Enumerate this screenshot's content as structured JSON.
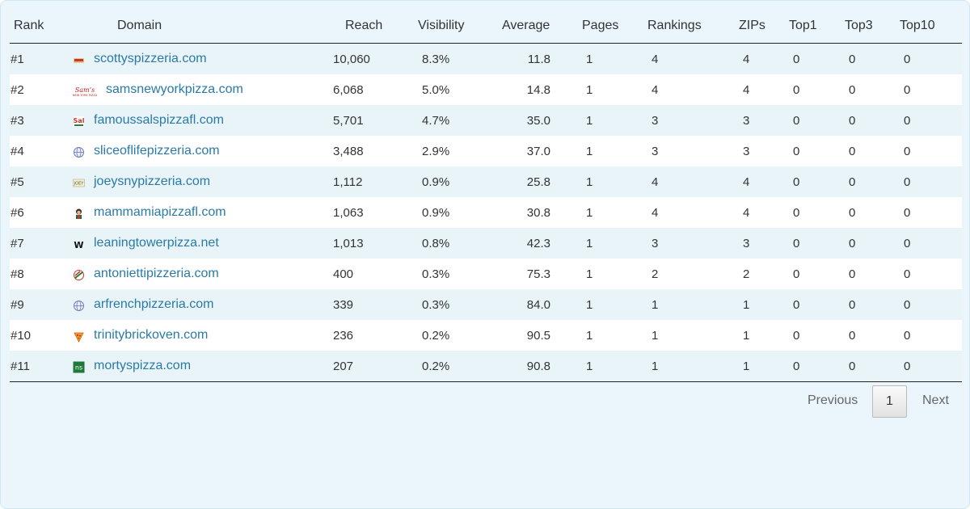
{
  "columns": {
    "rank": "Rank",
    "domain": "Domain",
    "reach": "Reach",
    "visibility": "Visibility",
    "average": "Average",
    "pages": "Pages",
    "rankings": "Rankings",
    "zips": "ZIPs",
    "top1": "Top1",
    "top3": "Top3",
    "top10": "Top10"
  },
  "rows": [
    {
      "rank": "#1",
      "domain": "scottyspizzeria.com",
      "favicon": "pizza-logo-icon",
      "reach": "10,060",
      "visibility": "8.3%",
      "average": "11.8",
      "pages": "1",
      "rankings": "4",
      "zips": "4",
      "top1": "0",
      "top3": "0",
      "top10": "0"
    },
    {
      "rank": "#2",
      "domain": "samsnewyorkpizza.com",
      "favicon": "sams-logo-icon",
      "reach": "6,068",
      "visibility": "5.0%",
      "average": "14.8",
      "pages": "1",
      "rankings": "4",
      "zips": "4",
      "top1": "0",
      "top3": "0",
      "top10": "0"
    },
    {
      "rank": "#3",
      "domain": "famoussalspizzafl.com",
      "favicon": "sals-logo-icon",
      "reach": "5,701",
      "visibility": "4.7%",
      "average": "35.0",
      "pages": "1",
      "rankings": "3",
      "zips": "3",
      "top1": "0",
      "top3": "0",
      "top10": "0"
    },
    {
      "rank": "#4",
      "domain": "sliceoflifepizzeria.com",
      "favicon": "globe-icon",
      "reach": "3,488",
      "visibility": "2.9%",
      "average": "37.0",
      "pages": "1",
      "rankings": "3",
      "zips": "3",
      "top1": "0",
      "top3": "0",
      "top10": "0"
    },
    {
      "rank": "#5",
      "domain": "joeysnypizzeria.com",
      "favicon": "joeys-logo-icon",
      "reach": "1,112",
      "visibility": "0.9%",
      "average": "25.8",
      "pages": "1",
      "rankings": "4",
      "zips": "4",
      "top1": "0",
      "top3": "0",
      "top10": "0"
    },
    {
      "rank": "#6",
      "domain": "mammamiapizzafl.com",
      "favicon": "chef-logo-icon",
      "reach": "1,063",
      "visibility": "0.9%",
      "average": "30.8",
      "pages": "1",
      "rankings": "4",
      "zips": "4",
      "top1": "0",
      "top3": "0",
      "top10": "0"
    },
    {
      "rank": "#7",
      "domain": "leaningtowerpizza.net",
      "favicon": "wix-icon",
      "reach": "1,013",
      "visibility": "0.8%",
      "average": "42.3",
      "pages": "1",
      "rankings": "3",
      "zips": "3",
      "top1": "0",
      "top3": "0",
      "top10": "0"
    },
    {
      "rank": "#8",
      "domain": "antoniettipizzeria.com",
      "favicon": "antonietti-logo-icon",
      "reach": "400",
      "visibility": "0.3%",
      "average": "75.3",
      "pages": "1",
      "rankings": "2",
      "zips": "2",
      "top1": "0",
      "top3": "0",
      "top10": "0"
    },
    {
      "rank": "#9",
      "domain": "arfrenchpizzeria.com",
      "favicon": "globe-icon",
      "reach": "339",
      "visibility": "0.3%",
      "average": "84.0",
      "pages": "1",
      "rankings": "1",
      "zips": "1",
      "top1": "0",
      "top3": "0",
      "top10": "0"
    },
    {
      "rank": "#10",
      "domain": "trinitybrickoven.com",
      "favicon": "pizza-slice-icon",
      "reach": "236",
      "visibility": "0.2%",
      "average": "90.5",
      "pages": "1",
      "rankings": "1",
      "zips": "1",
      "top1": "0",
      "top3": "0",
      "top10": "0"
    },
    {
      "rank": "#11",
      "domain": "mortyspizza.com",
      "favicon": "ns-logo-icon",
      "reach": "207",
      "visibility": "0.2%",
      "average": "90.8",
      "pages": "1",
      "rankings": "1",
      "zips": "1",
      "top1": "0",
      "top3": "0",
      "top10": "0"
    }
  ],
  "pagination": {
    "previous": "Previous",
    "current_page": "1",
    "next": "Next"
  },
  "colors": {
    "background": "#eaf6fc",
    "link": "#2a7aa6",
    "stripe": "#e9f4f9"
  }
}
